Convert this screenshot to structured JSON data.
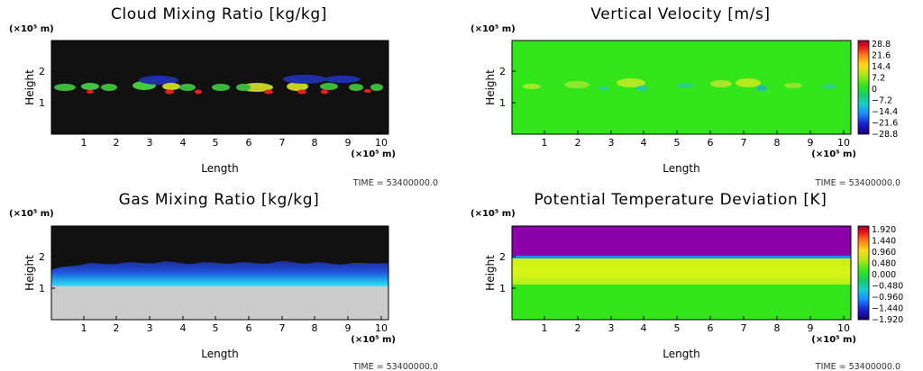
{
  "colors": {
    "background": "#ffffff",
    "plot_dark": "#111111",
    "plot_green": "#33e61a",
    "plot_purple": "#8a00a8",
    "surface_gray": "#cbcbcb"
  },
  "panels": [
    {
      "title": "Cloud Mixing Ratio [kg/kg]",
      "xlabel": "Length",
      "ylabel": "Height",
      "x_unit": "(×10⁵ m)",
      "y_unit": "(×10⁵ m)",
      "time": "TIME = 53400000.0",
      "x_ticks": [
        "1",
        "2",
        "3",
        "4",
        "5",
        "6",
        "7",
        "8",
        "9",
        "10"
      ],
      "y_ticks": [
        "1",
        "2"
      ],
      "colorbar": null
    },
    {
      "title": "Vertical Velocity [m/s]",
      "xlabel": "Length",
      "ylabel": "Height",
      "x_unit": "(×10⁵ m)",
      "y_unit": "(×10⁵ m)",
      "time": "TIME = 53400000.0",
      "x_ticks": [
        "1",
        "2",
        "3",
        "4",
        "5",
        "6",
        "7",
        "8",
        "9",
        "10"
      ],
      "y_ticks": [
        "1",
        "2"
      ],
      "colorbar": [
        "28.8",
        "21.6",
        "14.4",
        "7.2",
        "0",
        "−7.2",
        "−14.4",
        "−21.6",
        "−28.8"
      ]
    },
    {
      "title": "Gas Mixing Ratio [kg/kg]",
      "xlabel": "Length",
      "ylabel": "Height",
      "x_unit": "(×10⁵ m)",
      "y_unit": "(×10⁵ m)",
      "time": "TIME = 53400000.0",
      "x_ticks": [
        "1",
        "2",
        "3",
        "4",
        "5",
        "6",
        "7",
        "8",
        "9",
        "10"
      ],
      "y_ticks": [
        "1",
        "2"
      ],
      "colorbar": null
    },
    {
      "title": "Potential Temperature Deviation [K]",
      "xlabel": "Length",
      "ylabel": "Height",
      "x_unit": "(×10⁵ m)",
      "y_unit": "(×10⁵ m)",
      "time": "TIME = 53400000.0",
      "x_ticks": [
        "1",
        "2",
        "3",
        "4",
        "5",
        "6",
        "7",
        "8",
        "9",
        "10"
      ],
      "y_ticks": [
        "1",
        "2"
      ],
      "colorbar": [
        "1.920",
        "1.440",
        "0.960",
        "0.480",
        "0.000",
        "−0.480",
        "−0.960",
        "−1.440",
        "−1.920"
      ]
    }
  ],
  "chart_data": [
    {
      "type": "heatmap",
      "title": "Cloud Mixing Ratio [kg/kg]",
      "xlabel": "Length",
      "ylabel": "Height",
      "x_range": [
        0,
        10.2
      ],
      "y_range": [
        0,
        3
      ],
      "grid": false
    },
    {
      "type": "heatmap",
      "title": "Vertical Velocity [m/s]",
      "xlabel": "Length",
      "ylabel": "Height",
      "x_range": [
        0,
        10.2
      ],
      "y_range": [
        0,
        3
      ],
      "grid": false,
      "colorbar_range": [
        -28.8,
        28.8
      ]
    },
    {
      "type": "heatmap",
      "title": "Gas Mixing Ratio [kg/kg]",
      "xlabel": "Length",
      "ylabel": "Height",
      "x_range": [
        0,
        10.2
      ],
      "y_range": [
        0,
        3
      ],
      "grid": false
    },
    {
      "type": "heatmap",
      "title": "Potential Temperature Deviation [K]",
      "xlabel": "Length",
      "ylabel": "Height",
      "x_range": [
        0,
        10.2
      ],
      "y_range": [
        0,
        3
      ],
      "grid": false,
      "colorbar_range": [
        -1.92,
        1.92
      ]
    }
  ]
}
